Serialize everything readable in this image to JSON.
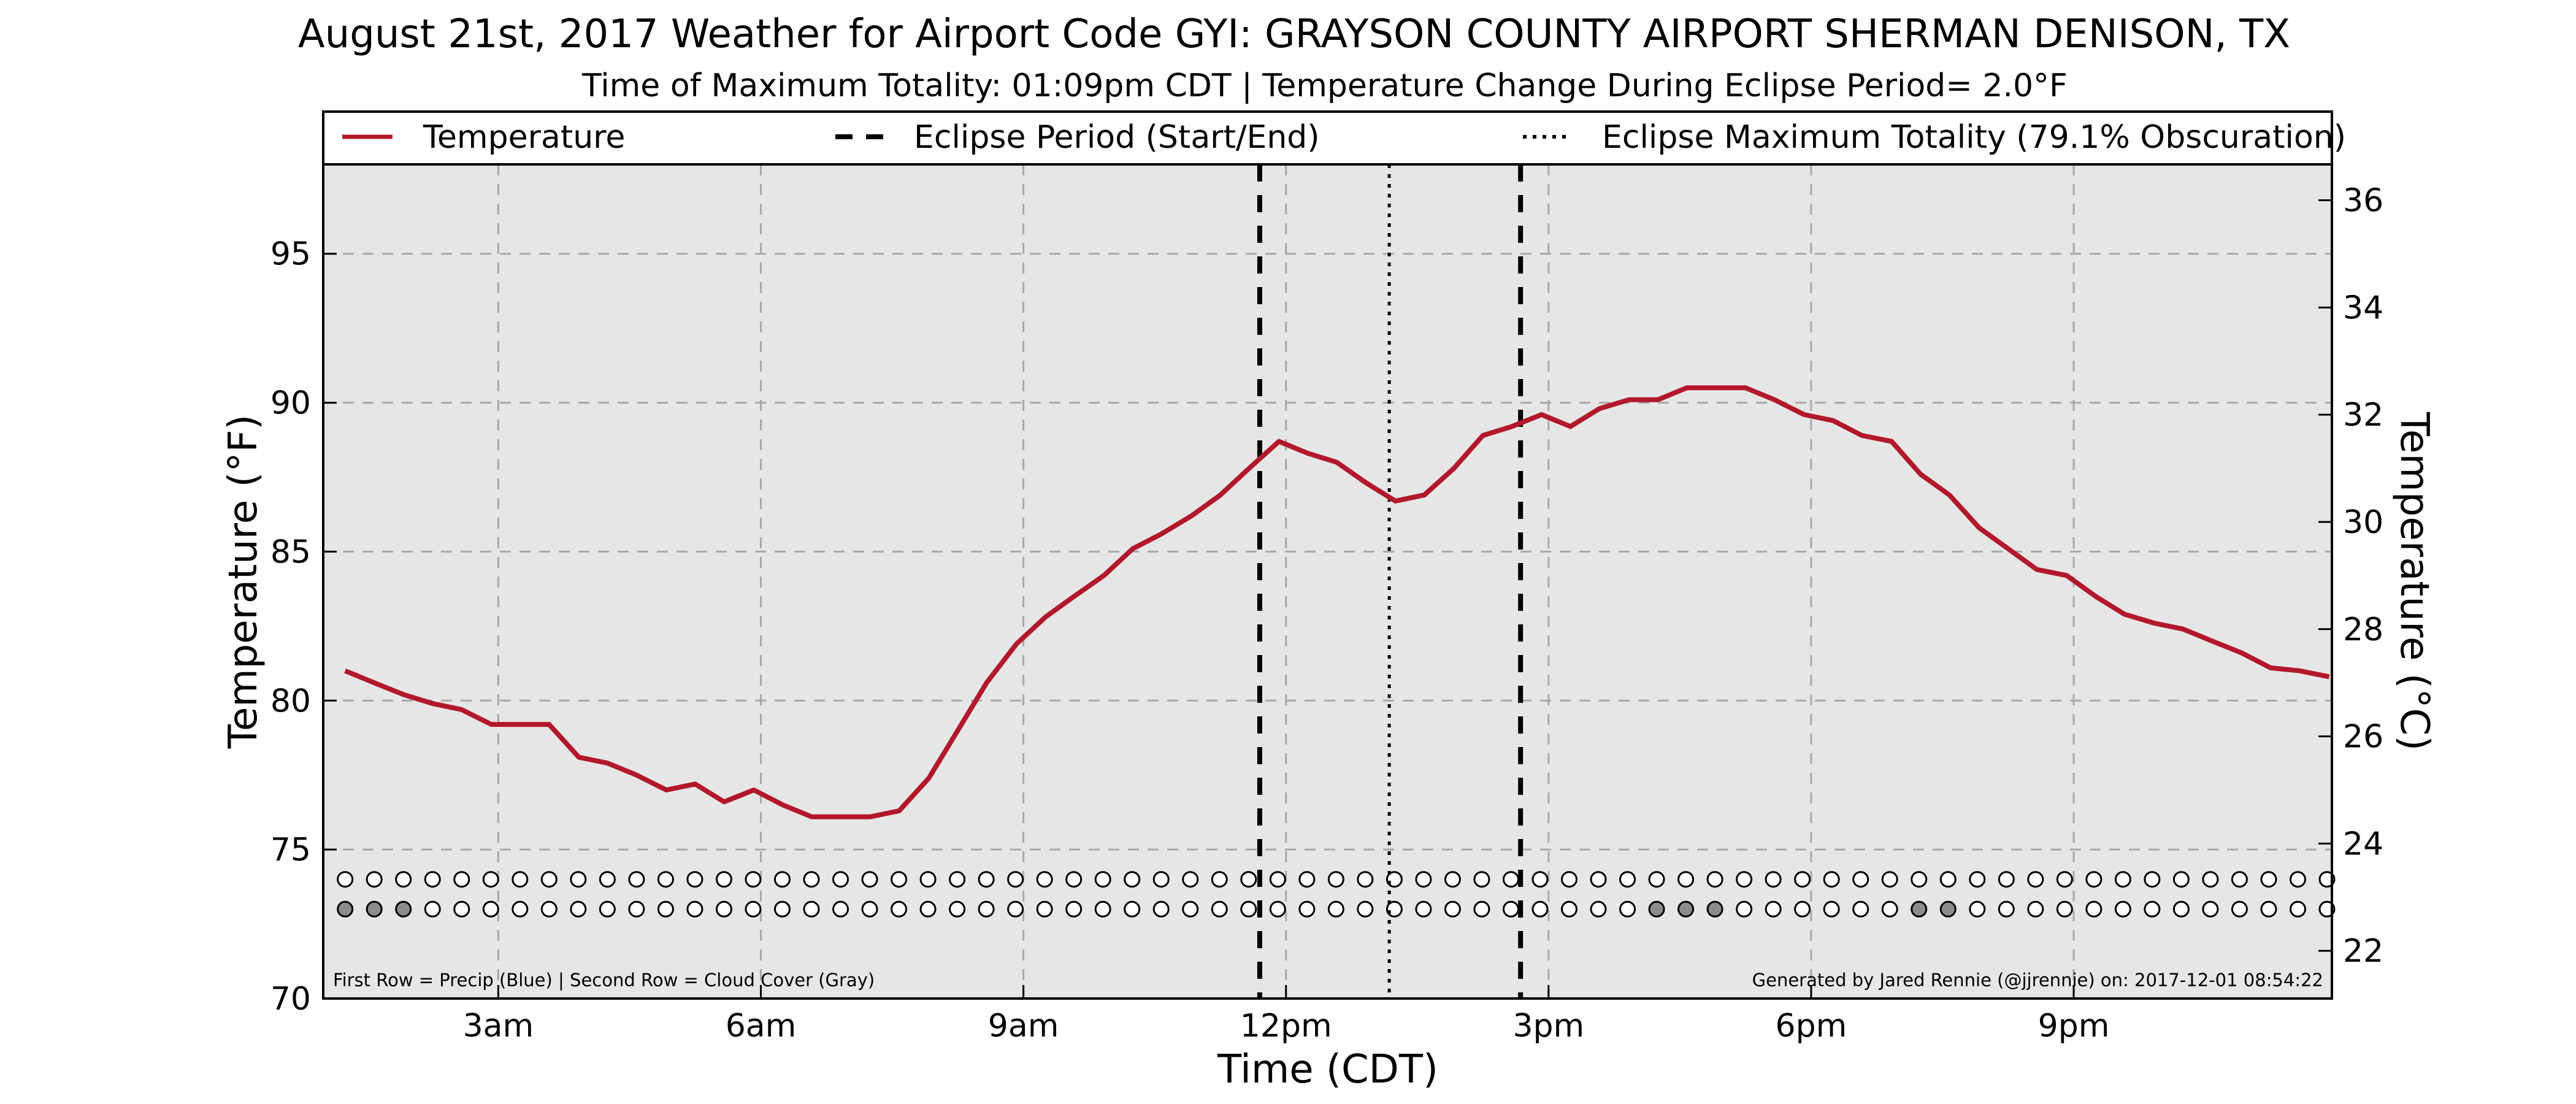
{
  "title": "August 21st, 2017 Weather for Airport Code GYI: GRAYSON COUNTY AIRPORT SHERMAN DENISON, TX",
  "subtitle": "Time of Maximum Totality: 01:09pm CDT | Temperature Change During Eclipse Period= 2.0°F",
  "footer_left": "First Row = Precip (Blue) | Second Row = Cloud Cover (Gray)",
  "footer_right": "Generated by Jared Rennie (@jjrennie) on: 2017-12-01 08:54:22",
  "chart_data": {
    "type": "line",
    "xlabel": "Time (CDT)",
    "ylabel": "Temperature (°F)",
    "ylabel_right": "Temperature (°C)",
    "x_unit": "hours CDT",
    "xlim": [
      1.0,
      23.95
    ],
    "ylim": [
      70,
      98
    ],
    "ylim_right_c": [
      21.11,
      36.67
    ],
    "x_ticks": [
      {
        "hour": 3,
        "label": "3am"
      },
      {
        "hour": 6,
        "label": "6am"
      },
      {
        "hour": 9,
        "label": "9am"
      },
      {
        "hour": 12,
        "label": "12pm"
      },
      {
        "hour": 15,
        "label": "3pm"
      },
      {
        "hour": 18,
        "label": "6pm"
      },
      {
        "hour": 21,
        "label": "9pm"
      }
    ],
    "y_ticks": [
      70,
      75,
      80,
      85,
      90,
      95
    ],
    "y_ticks_right": [
      22,
      24,
      26,
      28,
      30,
      32,
      34,
      36
    ],
    "grid": true,
    "legend_position": "top",
    "legend": [
      {
        "label": "Temperature",
        "style": "solid",
        "color": "#b2182b"
      },
      {
        "label": "Eclipse Period (Start/End)",
        "style": "dashed",
        "color": "#000000"
      },
      {
        "label": "Eclipse Maximum Totality (79.1% Obscuration)",
        "style": "dotted",
        "color": "#000000"
      }
    ],
    "series": [
      {
        "name": "Temperature",
        "color": "#b2182b",
        "x": [
          1.25,
          1.58,
          1.92,
          2.25,
          2.58,
          2.92,
          3.25,
          3.58,
          3.92,
          4.25,
          4.58,
          4.92,
          5.25,
          5.58,
          5.92,
          6.25,
          6.58,
          6.92,
          7.25,
          7.58,
          7.92,
          8.25,
          8.58,
          8.92,
          9.25,
          9.58,
          9.92,
          10.25,
          10.58,
          10.92,
          11.25,
          11.58,
          11.92,
          12.25,
          12.58,
          12.92,
          13.25,
          13.58,
          13.92,
          14.25,
          14.58,
          14.92,
          15.25,
          15.58,
          15.92,
          16.25,
          16.58,
          16.92,
          17.25,
          17.58,
          17.92,
          18.25,
          18.58,
          18.92,
          19.25,
          19.58,
          19.92,
          20.25,
          20.58,
          20.92,
          21.25,
          21.58,
          21.92,
          22.25,
          22.58,
          22.92,
          23.25,
          23.58,
          23.92
        ],
        "values": [
          81.0,
          80.6,
          80.2,
          79.9,
          79.7,
          79.2,
          79.2,
          79.2,
          78.1,
          77.9,
          77.5,
          77.0,
          77.2,
          76.6,
          77.0,
          76.5,
          76.1,
          76.1,
          76.1,
          76.3,
          77.4,
          79.0,
          80.6,
          81.9,
          82.8,
          83.5,
          84.2,
          85.1,
          85.6,
          86.2,
          86.9,
          87.8,
          88.7,
          88.3,
          88.0,
          87.3,
          86.7,
          86.9,
          87.8,
          88.9,
          89.2,
          89.6,
          89.2,
          89.8,
          90.1,
          90.1,
          90.5,
          90.5,
          90.5,
          90.1,
          89.6,
          89.4,
          88.9,
          88.7,
          87.6,
          86.9,
          85.8,
          85.1,
          84.4,
          84.2,
          83.5,
          82.9,
          82.6,
          82.4,
          82.0,
          81.6,
          81.1,
          81.0,
          80.8
        ]
      }
    ],
    "eclipse_start_hour": 11.7,
    "eclipse_end_hour": 14.68,
    "eclipse_max_hour": 13.18,
    "indicator_rows": {
      "y_values": [
        74,
        73
      ],
      "start_hour": 1.25,
      "step_hours": 0.333,
      "count": 69,
      "precip_filled": [],
      "cloud_filled": [
        0,
        1,
        2,
        45,
        46,
        47,
        54,
        55
      ],
      "precip_color": "#1f5fbf",
      "cloud_color": "#8c8c8c"
    },
    "colors": {
      "plot_background": "#e6e6e6",
      "grid": "#a8a8a8"
    }
  }
}
